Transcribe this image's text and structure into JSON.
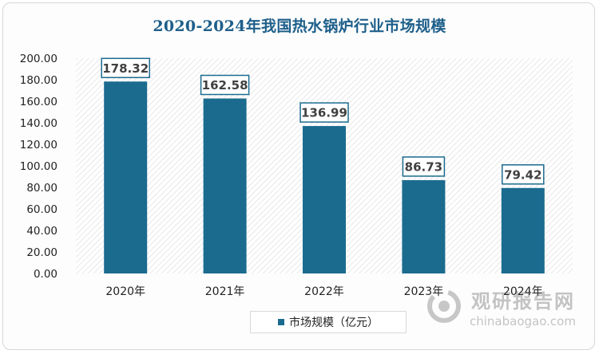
{
  "chart_data": {
    "type": "bar",
    "title": "2020-2024年我国热水锅炉行业市场规模",
    "categories": [
      "2020年",
      "2021年",
      "2022年",
      "2023年",
      "2024年"
    ],
    "series": [
      {
        "name": "市场规模（亿元）",
        "values": [
          178.32,
          162.58,
          136.99,
          86.73,
          79.42
        ]
      }
    ],
    "data_labels": [
      "178.32",
      "162.58",
      "136.99",
      "86.73",
      "79.42"
    ],
    "ylim": [
      0,
      200
    ],
    "yticks": [
      0,
      20,
      40,
      60,
      80,
      100,
      120,
      140,
      160,
      180,
      200
    ],
    "ytick_labels": [
      "0.00",
      "20.00",
      "40.00",
      "60.00",
      "80.00",
      "100.00",
      "120.00",
      "140.00",
      "160.00",
      "180.00",
      "200.00"
    ],
    "grid": false,
    "plot_background": "diagonal-hatch",
    "legend_position": "bottom",
    "colors": {
      "bar": "#1b6b8f",
      "title": "#1e5f8a",
      "label_border": "#1b6b8f"
    }
  },
  "watermark": {
    "name_cn": "观研报告网",
    "url": "chinabaogao.com"
  }
}
